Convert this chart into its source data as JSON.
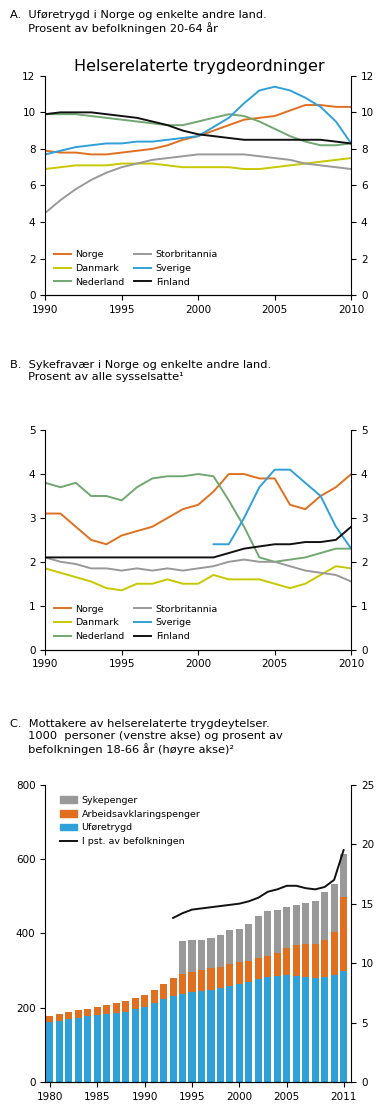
{
  "title": "Helserelaterte trygdeordninger",
  "panel_a": {
    "label": "A.  Uføretrygd i Norge og enkelte andre land.\n     Prosent av befolkningen 20-64 år",
    "ylim": [
      0,
      12
    ],
    "yticks": [
      0,
      2,
      4,
      6,
      8,
      10,
      12
    ],
    "years": [
      1990,
      1991,
      1992,
      1993,
      1994,
      1995,
      1996,
      1997,
      1998,
      1999,
      2000,
      2001,
      2002,
      2003,
      2004,
      2005,
      2006,
      2007,
      2008,
      2009,
      2010
    ],
    "series": {
      "Norge": [
        7.9,
        7.8,
        7.8,
        7.7,
        7.7,
        7.8,
        7.9,
        8.0,
        8.2,
        8.5,
        8.7,
        9.0,
        9.3,
        9.6,
        9.7,
        9.8,
        10.1,
        10.4,
        10.4,
        10.3,
        10.3
      ],
      "Danmark": [
        6.9,
        7.0,
        7.1,
        7.1,
        7.1,
        7.2,
        7.2,
        7.2,
        7.1,
        7.0,
        7.0,
        7.0,
        7.0,
        6.9,
        6.9,
        7.0,
        7.1,
        7.2,
        7.3,
        7.4,
        7.5
      ],
      "Nederland": [
        9.9,
        9.9,
        9.9,
        9.8,
        9.7,
        9.6,
        9.5,
        9.4,
        9.3,
        9.3,
        9.5,
        9.7,
        9.9,
        9.8,
        9.5,
        9.1,
        8.7,
        8.4,
        8.2,
        8.2,
        8.3
      ],
      "Storbritannia": [
        4.5,
        5.2,
        5.8,
        6.3,
        6.7,
        7.0,
        7.2,
        7.4,
        7.5,
        7.6,
        7.7,
        7.7,
        7.7,
        7.7,
        7.6,
        7.5,
        7.4,
        7.2,
        7.1,
        7.0,
        6.9
      ],
      "Sverige": [
        7.7,
        7.9,
        8.1,
        8.2,
        8.3,
        8.3,
        8.4,
        8.4,
        8.5,
        8.6,
        8.7,
        9.2,
        9.7,
        10.5,
        11.2,
        11.4,
        11.2,
        10.8,
        10.3,
        9.5,
        8.3
      ],
      "Finland": [
        9.9,
        10.0,
        10.0,
        10.0,
        9.9,
        9.8,
        9.7,
        9.5,
        9.3,
        9.0,
        8.8,
        8.7,
        8.6,
        8.5,
        8.5,
        8.5,
        8.5,
        8.5,
        8.5,
        8.4,
        8.3
      ]
    },
    "colors": {
      "Norge": "#E07020",
      "Danmark": "#C8C800",
      "Nederland": "#70A870",
      "Storbritannia": "#999999",
      "Sverige": "#30A0D8",
      "Finland": "#111111"
    }
  },
  "panel_b": {
    "label": "B.  Sykefravær i Norge og enkelte andre land.\n     Prosent av alle sysselsatte¹",
    "ylim": [
      0,
      5
    ],
    "yticks": [
      0,
      1,
      2,
      3,
      4,
      5
    ],
    "years": [
      1990,
      1991,
      1992,
      1993,
      1994,
      1995,
      1996,
      1997,
      1998,
      1999,
      2000,
      2001,
      2002,
      2003,
      2004,
      2005,
      2006,
      2007,
      2008,
      2009,
      2010
    ],
    "series": {
      "Norge": [
        3.1,
        3.1,
        2.8,
        2.5,
        2.4,
        2.6,
        2.7,
        2.8,
        3.0,
        3.2,
        3.3,
        3.6,
        4.0,
        4.0,
        3.9,
        3.9,
        3.3,
        3.2,
        3.5,
        3.7,
        4.0
      ],
      "Danmark": [
        1.85,
        1.75,
        1.65,
        1.55,
        1.4,
        1.35,
        1.5,
        1.5,
        1.6,
        1.5,
        1.5,
        1.7,
        1.6,
        1.6,
        1.6,
        1.5,
        1.4,
        1.5,
        1.7,
        1.9,
        1.85
      ],
      "Nederland": [
        3.8,
        3.7,
        3.8,
        3.5,
        3.5,
        3.4,
        3.7,
        3.9,
        3.95,
        3.95,
        4.0,
        3.95,
        3.4,
        2.8,
        2.1,
        2.0,
        2.05,
        2.1,
        2.2,
        2.3,
        2.3
      ],
      "Storbritannia": [
        2.1,
        2.0,
        1.95,
        1.85,
        1.85,
        1.8,
        1.85,
        1.8,
        1.85,
        1.8,
        1.85,
        1.9,
        2.0,
        2.05,
        2.0,
        2.0,
        1.9,
        1.8,
        1.75,
        1.7,
        1.55
      ],
      "Sverige": [
        null,
        null,
        null,
        null,
        null,
        null,
        null,
        null,
        null,
        null,
        null,
        2.4,
        2.4,
        3.0,
        3.7,
        4.1,
        4.1,
        3.8,
        3.5,
        2.8,
        2.3
      ],
      "Finland": [
        2.1,
        null,
        null,
        null,
        null,
        null,
        null,
        null,
        null,
        null,
        null,
        2.1,
        2.2,
        2.3,
        2.35,
        2.4,
        2.4,
        2.45,
        2.45,
        2.5,
        2.8
      ]
    },
    "colors": {
      "Norge": "#E07020",
      "Danmark": "#C8C800",
      "Nederland": "#70A870",
      "Storbritannia": "#999999",
      "Sverige": "#30A0D8",
      "Finland": "#111111"
    }
  },
  "panel_c": {
    "label": "C.  Mottakere av helserelaterte trygdeytelser.\n     1000  personer (venstre akse) og prosent av\n     befolkningen 18-66 år (høyre akse)²",
    "years": [
      1980,
      1981,
      1982,
      1983,
      1984,
      1985,
      1986,
      1987,
      1988,
      1989,
      1990,
      1991,
      1992,
      1993,
      1994,
      1995,
      1996,
      1997,
      1998,
      1999,
      2000,
      2001,
      2002,
      2003,
      2004,
      2005,
      2006,
      2007,
      2008,
      2009,
      2010,
      2011
    ],
    "uforetrygd": [
      162,
      166,
      170,
      174,
      177,
      181,
      184,
      186,
      190,
      196,
      203,
      214,
      223,
      231,
      238,
      242,
      246,
      249,
      252,
      258,
      264,
      270,
      278,
      283,
      285,
      287,
      285,
      283,
      280,
      282,
      288,
      298
    ],
    "aap": [
      15,
      17,
      18,
      19,
      20,
      22,
      24,
      26,
      28,
      30,
      32,
      35,
      40,
      48,
      52,
      55,
      57,
      58,
      59,
      60,
      58,
      56,
      55,
      57,
      63,
      73,
      83,
      88,
      91,
      100,
      115,
      200
    ],
    "sykepenger": [
      0,
      0,
      0,
      0,
      0,
      0,
      0,
      0,
      0,
      0,
      0,
      0,
      0,
      0,
      90,
      85,
      80,
      80,
      85,
      90,
      90,
      100,
      115,
      120,
      115,
      110,
      108,
      110,
      115,
      130,
      130,
      115
    ],
    "pst_befolkning": [
      null,
      null,
      null,
      null,
      null,
      null,
      null,
      null,
      null,
      null,
      null,
      null,
      null,
      13.8,
      14.2,
      14.5,
      14.6,
      14.7,
      14.8,
      14.9,
      15.0,
      15.2,
      15.5,
      16.0,
      16.2,
      16.5,
      16.5,
      16.3,
      16.2,
      16.4,
      17.0,
      19.5
    ],
    "ylim_left": [
      0,
      800
    ],
    "ylim_right": [
      0,
      25
    ],
    "yticks_left": [
      0,
      200,
      400,
      600,
      800
    ],
    "yticks_right": [
      0,
      5,
      10,
      15,
      20,
      25
    ],
    "colors": {
      "sykepenger": "#999999",
      "aap": "#E07020",
      "uforetrygd": "#30A0D8",
      "pst_befolkning": "#111111"
    },
    "legend": [
      "Sykepenger",
      "Arbeidsavklaringspenger",
      "Uføretrygd",
      "I pst. av befolkningen"
    ]
  }
}
